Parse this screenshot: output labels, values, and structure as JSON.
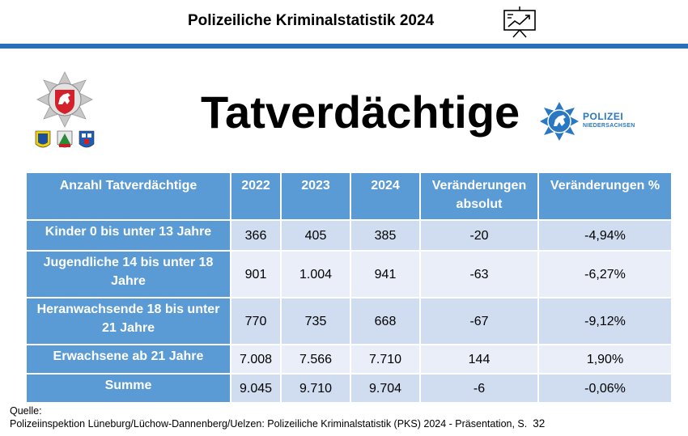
{
  "header": {
    "title": "Polizeiliche Kriminalstatistik 2024",
    "icon": "presentation-board-icon"
  },
  "page": {
    "heading": "Tatverdächtige"
  },
  "logos": {
    "left": "lower-saxony-police-star-with-district-crests",
    "right_name": "POLIZEI",
    "right_sub": "NIEDERSACHSEN"
  },
  "table": {
    "headers": [
      "Anzahl Tatverdächtige",
      "2022",
      "2023",
      "2024",
      "Veränderungen absolut",
      "Veränderungen %"
    ],
    "rows": [
      [
        "Kinder 0 bis unter 13 Jahre",
        "366",
        "405",
        "385",
        "-20",
        "-4,94%"
      ],
      [
        "Jugendliche 14 bis unter 18 Jahre",
        "901",
        "1.004",
        "941",
        "-63",
        "-6,27%"
      ],
      [
        "Heranwachsende 18 bis unter 21 Jahre",
        "770",
        "735",
        "668",
        "-67",
        "-9,12%"
      ],
      [
        "Erwachsene ab 21 Jahre",
        "7.008",
        "7.566",
        "7.710",
        "144",
        "1,90%"
      ],
      [
        "Summe",
        "9.045",
        "9.710",
        "9.704",
        "-6",
        "-0,06%"
      ]
    ]
  },
  "source": {
    "label": "Quelle:",
    "text": "Polizeiinspektion Lüneburg/Lüchow-Dannenberg/Uelzen: Polizeiliche Kriminalstatistik (PKS) 2024 - Präsentation, S.",
    "page_number": "32"
  },
  "colors": {
    "accent": "#2870b8",
    "header_cell": "#5b9bd5",
    "row_dark": "#d0ddf0",
    "row_light": "#e9eef8"
  }
}
